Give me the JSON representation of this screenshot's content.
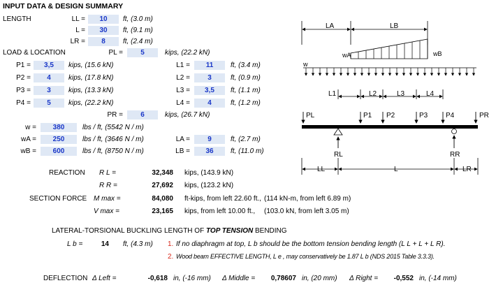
{
  "title": "INPUT DATA & DESIGN SUMMARY",
  "length": {
    "heading": "LENGTH",
    "rows": [
      {
        "label": "LL =",
        "value": "10",
        "unit": "ft, (3.0 m)"
      },
      {
        "label": "L =",
        "value": "30",
        "unit": "ft, (9.1 m)"
      },
      {
        "label": "LR =",
        "value": "8",
        "unit": "ft, (2.4 m)"
      }
    ]
  },
  "load_location": {
    "heading": "LOAD & LOCATION",
    "pl": {
      "label": "PL =",
      "value": "5",
      "unit": "kips, (22.2 kN)"
    },
    "p_rows": [
      {
        "label": "P1 =",
        "value": "3,5",
        "unit": "kips, (15.6 kN)"
      },
      {
        "label": "P2 =",
        "value": "4",
        "unit": "kips, (17.8 kN)"
      },
      {
        "label": "P3 =",
        "value": "3",
        "unit": "kips, (13.3 kN)"
      },
      {
        "label": "P4 =",
        "value": "5",
        "unit": "kips, (22.2 kN)"
      }
    ],
    "l_rows": [
      {
        "label": "L1 =",
        "value": "11",
        "unit": "ft, (3.4 m)"
      },
      {
        "label": "L2 =",
        "value": "3",
        "unit": "ft, (0.9 m)"
      },
      {
        "label": "L3 =",
        "value": "3,5",
        "unit": "ft, (1.1 m)"
      },
      {
        "label": "L4 =",
        "value": "4",
        "unit": "ft, (1.2 m)"
      }
    ],
    "pr": {
      "label": "PR =",
      "value": "6",
      "unit": "kips, (26.7 kN)"
    },
    "w_rows": [
      {
        "label": "w =",
        "value": "380",
        "unit": "lbs / ft, (5542 N / m)"
      },
      {
        "label": "wA =",
        "value": "250",
        "unit": "lbs / ft, (3646 N / m)"
      },
      {
        "label": "wB =",
        "value": "600",
        "unit": "lbs / ft, (8750 N / m)"
      }
    ],
    "la": {
      "label": "LA =",
      "value": "9",
      "unit": "ft, (2.7 m)"
    },
    "lb": {
      "label": "LB =",
      "value": "36",
      "unit": "ft, (11.0 m)"
    }
  },
  "reaction": {
    "heading": "REACTION",
    "rl": {
      "label": "R L =",
      "value": "32,348",
      "unit": "kips, (143.9 kN)"
    },
    "rr": {
      "label": "R R =",
      "value": "27,692",
      "unit": "kips, (123.2 kN)"
    }
  },
  "section_force": {
    "heading": "SECTION FORCE",
    "mmax": {
      "label": "M max =",
      "value": "84,080",
      "unit": "ft-kips, from left 22.60 ft.,",
      "metric": "(114 kN-m, from left 6.89 m)"
    },
    "vmax": {
      "label": "V max =",
      "value": "23,165",
      "unit": "kips, from left 10.00 ft.,",
      "metric": "(103.0 kN, from left 3.05 m)"
    }
  },
  "ltb": {
    "heading_pre": "LATERAL-TORSIONAL BUCKLING LENGTH OF ",
    "heading_em": "TOP TENSION",
    "heading_post": " BENDING",
    "lb_label": "L b =",
    "lb_value": "14",
    "lb_unit": "ft, (4.3 m)",
    "note1_num": "1.",
    "note1": "If no diaphragm at top, L b should be the bottom tension bending length (L L + L + L R).",
    "note2_num": "2.",
    "note2": "Wood beam EFFECTIVE LENGTH, L e , may conservatively be 1.87 L b  (NDS 2015 Table 3.3.3)."
  },
  "deflection": {
    "heading": "DEFLECTION",
    "left": {
      "label": "Δ Left =",
      "value": "-0,618",
      "unit": "in, (-16 mm)"
    },
    "middle": {
      "label": "Δ Middle =",
      "value": "0,78607",
      "unit": "in, (20 mm)"
    },
    "right": {
      "label": "Δ Right =",
      "value": "-0,552",
      "unit": "in, (-14 mm)"
    }
  },
  "diagram": {
    "la": "LA",
    "lb": "LB",
    "wa": "wA",
    "wb": "wB",
    "w": "w",
    "l1": "L1",
    "l2": "L2",
    "l3": "L3",
    "l4": "L4",
    "pl": "PL",
    "p1": "P1",
    "p2": "P2",
    "p3": "P3",
    "p4": "P4",
    "pr": "PR",
    "rl": "RL",
    "rr": "RR",
    "ll": "LL",
    "l": "L",
    "lr": "LR"
  }
}
